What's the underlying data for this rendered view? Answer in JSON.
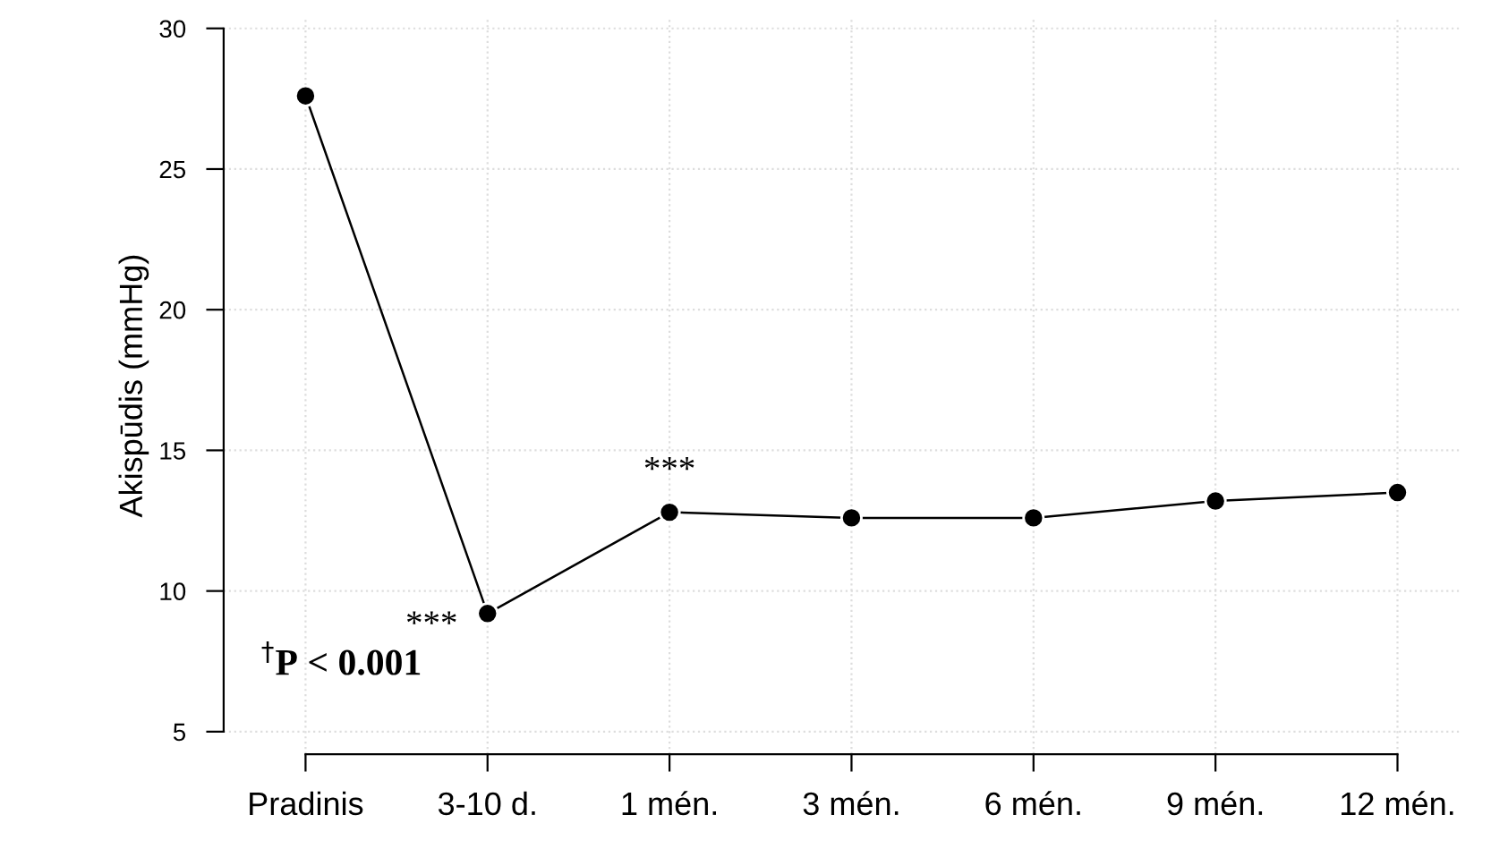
{
  "chart_data": {
    "type": "line",
    "ylabel": "Akispūdis (mmHg)",
    "categories": [
      "Pradinis",
      "3-10 d.",
      "1 mén.",
      "3 mén.",
      "6 mén.",
      "9 mén.",
      "12 mén."
    ],
    "values": [
      27.6,
      9.2,
      12.8,
      12.6,
      12.6,
      13.2,
      13.5
    ],
    "color": "#000000",
    "marker": "circle",
    "line_style": "solid",
    "ylim": [
      4.2,
      30.4
    ],
    "yticks": [
      5,
      10,
      15,
      20,
      25,
      30
    ],
    "grid": true,
    "annotations": [
      {
        "text": "***",
        "x": "3-10 d.",
        "y": 9.2
      },
      {
        "text": "***",
        "x": "1 mén.",
        "y": 12.8
      },
      "$^{†}$P < 0.001"
    ]
  }
}
